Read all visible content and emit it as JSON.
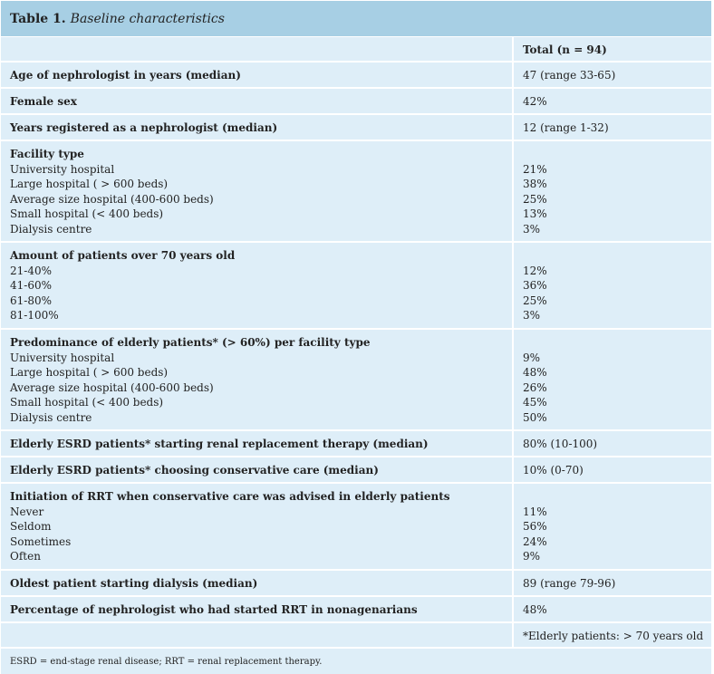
{
  "table": {
    "number": "Table 1.",
    "title": "Baseline characteristics",
    "column_header": "Total (n = 94)",
    "rows": [
      {
        "label": "Age of nephrologist in years (median)",
        "value": "47 (range 33-65)"
      },
      {
        "label": "Female sex",
        "value": "42%"
      },
      {
        "label": "Years registered as a nephrologist (median)",
        "value": "12 (range 1-32)"
      },
      {
        "label": "Facility type",
        "items": [
          {
            "label": "University hospital",
            "value": "21%"
          },
          {
            "label": "Large hospital ( > 600 beds)",
            "value": "38%"
          },
          {
            "label": "Average size hospital (400-600 beds)",
            "value": "25%"
          },
          {
            "label": "Small hospital (< 400 beds)",
            "value": "13%"
          },
          {
            "label": "Dialysis centre",
            "value": "3%"
          }
        ]
      },
      {
        "label": "Amount of patients over 70 years old",
        "items": [
          {
            "label": "21-40%",
            "value": "12%"
          },
          {
            "label": "41-60%",
            "value": "36%"
          },
          {
            "label": "61-80%",
            "value": "25%"
          },
          {
            "label": "81-100%",
            "value": "3%"
          }
        ]
      },
      {
        "label": "Predominance of elderly patients* (> 60%) per facility type",
        "items": [
          {
            "label": "University hospital",
            "value": "9%"
          },
          {
            "label": "Large hospital ( > 600 beds)",
            "value": "48%"
          },
          {
            "label": "Average size hospital (400-600 beds)",
            "value": "26%"
          },
          {
            "label": "Small hospital (< 400 beds)",
            "value": "45%"
          },
          {
            "label": "Dialysis centre",
            "value": "50%"
          }
        ]
      },
      {
        "label": "Elderly ESRD patients* starting renal replacement therapy (median)",
        "value": "80% (10-100)"
      },
      {
        "label": "Elderly ESRD patients* choosing conservative care (median)",
        "value": "10% (0-70)"
      },
      {
        "label": "Initiation of RRT when conservative care was advised in elderly patients",
        "items": [
          {
            "label": "Never",
            "value": "11%"
          },
          {
            "label": "Seldom",
            "value": "56%"
          },
          {
            "label": "Sometimes",
            "value": "24%"
          },
          {
            "label": "Often",
            "value": "9%"
          }
        ]
      },
      {
        "label": "Oldest patient starting dialysis (median)",
        "value": "89 (range 79-96)"
      },
      {
        "label": "Percentage of nephrologist who had started RRT in nonagenarians",
        "value": "48%"
      }
    ],
    "elderly_note": "*Elderly patients: > 70 years old",
    "footnote": "ESRD = end-stage renal disease; RRT = renal replacement therapy."
  }
}
